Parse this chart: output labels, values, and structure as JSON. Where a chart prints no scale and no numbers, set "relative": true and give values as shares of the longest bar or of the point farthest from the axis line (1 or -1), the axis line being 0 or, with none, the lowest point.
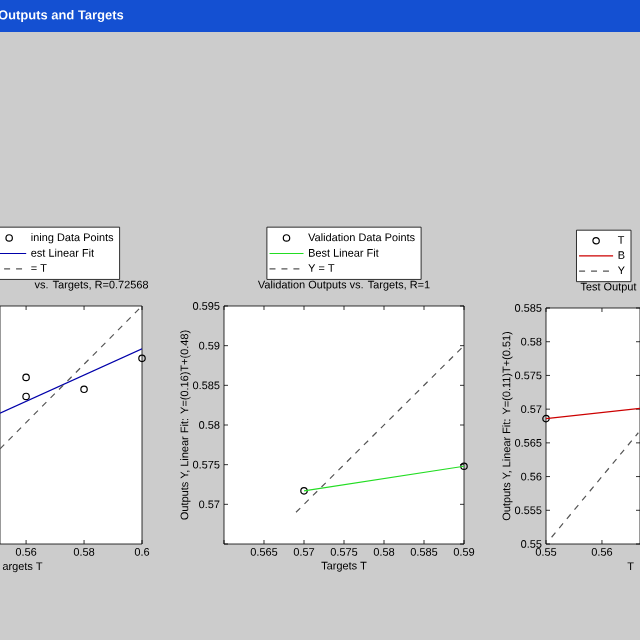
{
  "chart_data": [
    {
      "type": "scatter",
      "title": "vs. Targets, R=0.72568",
      "xlabel": "argets T",
      "annotations": [
        "Outputs and Targets"
      ],
      "relative": true,
      "tick_labels": "x",
      "legend": "top",
      "xlim": [
        0.551,
        0.6
      ],
      "xticks": [
        0.56,
        0.58,
        0.6
      ],
      "series": [
        {
          "name": "ining Data Points",
          "type": "scatter",
          "marker": "circle",
          "color": "#000000",
          "x": [
            0.56,
            0.56,
            0.58,
            0.6
          ],
          "values": [
            0.7,
            0.62,
            0.65,
            0.78
          ]
        },
        {
          "name": "est Linear Fit",
          "type": "line",
          "marker": "none",
          "color": "#0000aa",
          "x": [
            0.551,
            0.6
          ],
          "values": [
            0.55,
            0.82
          ]
        },
        {
          "name": "= T",
          "type": "line",
          "marker": "none",
          "line_style": "dashed",
          "color": "#555555",
          "x": [
            0.551,
            0.6
          ],
          "values": [
            0.4,
            1
          ]
        }
      ]
    },
    {
      "type": "scatter",
      "title": "Validation Outputs vs. Targets, R=1",
      "xlabel": "Targets T",
      "ylabel": "Outputs Y, Linear Fit: Y=(0.16)T+(0.48)",
      "legend": "top",
      "xlim": [
        0.56,
        0.59
      ],
      "xticks": [
        {
          "value": 0.56,
          "label": null
        },
        0.565,
        0.57,
        0.575,
        0.58,
        0.585,
        0.59
      ],
      "ylim": [
        0.565,
        0.595
      ],
      "yticks": [
        {
          "value": 0.565,
          "label": null
        },
        0.57,
        0.575,
        0.58,
        0.585,
        0.59,
        0.595
      ],
      "series": [
        {
          "name": "Validation Data Points",
          "type": "scatter",
          "marker": "circle",
          "color": "#000000",
          "x": [
            0.57,
            0.59
          ],
          "values": [
            0.5717,
            0.5748
          ]
        },
        {
          "name": "Best Linear Fit",
          "type": "line",
          "marker": "none",
          "color": "#22dd22",
          "x": [
            0.57,
            0.59
          ],
          "values": [
            0.5717,
            0.5748
          ]
        },
        {
          "name": "Y = T",
          "type": "line",
          "marker": "none",
          "line_style": "dashed",
          "color": "#555555",
          "x": [
            0.569,
            0.59
          ],
          "values": [
            0.569,
            0.59
          ]
        }
      ]
    },
    {
      "type": "scatter",
      "title": "Test Output",
      "xlabel": "T",
      "ylabel": "Outputs Y, Linear Fit: Y=(0.11)T+(0.51)",
      "legend": "top",
      "xlim": [
        0.55,
        0.5668
      ],
      "xticks": [
        0.55,
        0.56
      ],
      "ylim": [
        0.55,
        0.585
      ],
      "yticks": [
        0.55,
        0.555,
        0.56,
        0.565,
        0.57,
        0.575,
        0.58,
        0.585
      ],
      "series": [
        {
          "name": "T",
          "type": "scatter",
          "marker": "circle",
          "color": "#000000",
          "x": [
            0.55
          ],
          "values": [
            0.5686
          ]
        },
        {
          "name": "B",
          "type": "line",
          "marker": "none",
          "color": "#cc0000",
          "x": [
            0.55,
            0.5668
          ],
          "values": [
            0.5686,
            0.5701
          ]
        },
        {
          "name": "Y",
          "type": "line",
          "marker": "none",
          "line_style": "dashed",
          "color": "#555555",
          "x": [
            0.551,
            0.5665
          ],
          "values": [
            0.551,
            0.5665
          ]
        }
      ]
    }
  ]
}
